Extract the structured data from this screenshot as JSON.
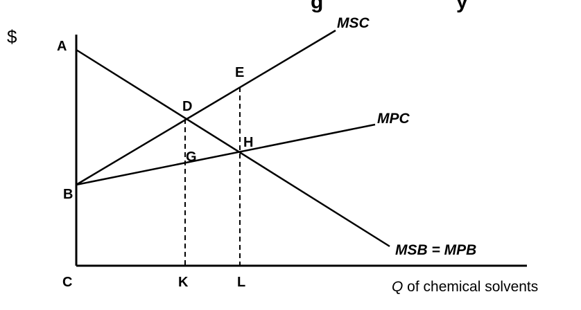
{
  "figure": {
    "cut_title_visible_fragment": "g                       y",
    "y_axis_label": "$",
    "x_axis_label_q": "Q",
    "x_axis_label_rest": " of chemical solvents",
    "colors": {
      "ink": "#000000",
      "background": "#ffffff"
    }
  },
  "points": {
    "A": "A",
    "B": "B",
    "C": "C",
    "D": "D",
    "E": "E",
    "G": "G",
    "H": "H",
    "K": "K",
    "L": "L"
  },
  "curves": {
    "msc": "MSC",
    "mpc": "MPC",
    "msb": "MSB = MPB"
  }
}
